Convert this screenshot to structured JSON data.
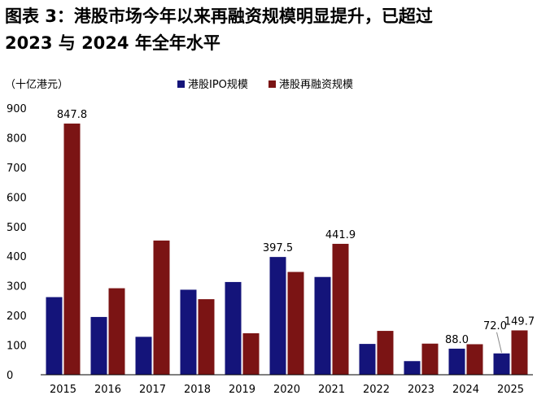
{
  "title_line1": "图表 3：港股市场今年以来再融资规模明显提升，已超过",
  "title_line2": "2023 与 2024 年全年水平",
  "chart_data": {
    "type": "bar",
    "unit_label": "（十亿港元）",
    "categories": [
      "2015",
      "2016",
      "2017",
      "2018",
      "2019",
      "2020",
      "2021",
      "2022",
      "2023",
      "2024",
      "2025"
    ],
    "series": [
      {
        "name": "港股IPO规模",
        "color": "#14147a",
        "values": [
          262,
          195,
          128,
          287,
          313,
          397.5,
          330,
          104,
          46,
          88.0,
          72.0
        ],
        "labels": [
          "",
          "",
          "",
          "",
          "",
          "397.5",
          "",
          "",
          "",
          "88.0",
          "72.0"
        ]
      },
      {
        "name": "港股再融资规模",
        "color": "#7b1414",
        "values": [
          847.8,
          292,
          453,
          255,
          140,
          347,
          441.9,
          148,
          105,
          103,
          149.7
        ],
        "labels": [
          "847.8",
          "",
          "",
          "",
          "",
          "",
          "441.9",
          "",
          "",
          "",
          "149.7"
        ]
      }
    ],
    "ylim": [
      0,
      900
    ],
    "yticks": [
      0,
      100,
      200,
      300,
      400,
      500,
      600,
      700,
      800,
      900
    ],
    "grid": false,
    "legend_position": "top"
  }
}
